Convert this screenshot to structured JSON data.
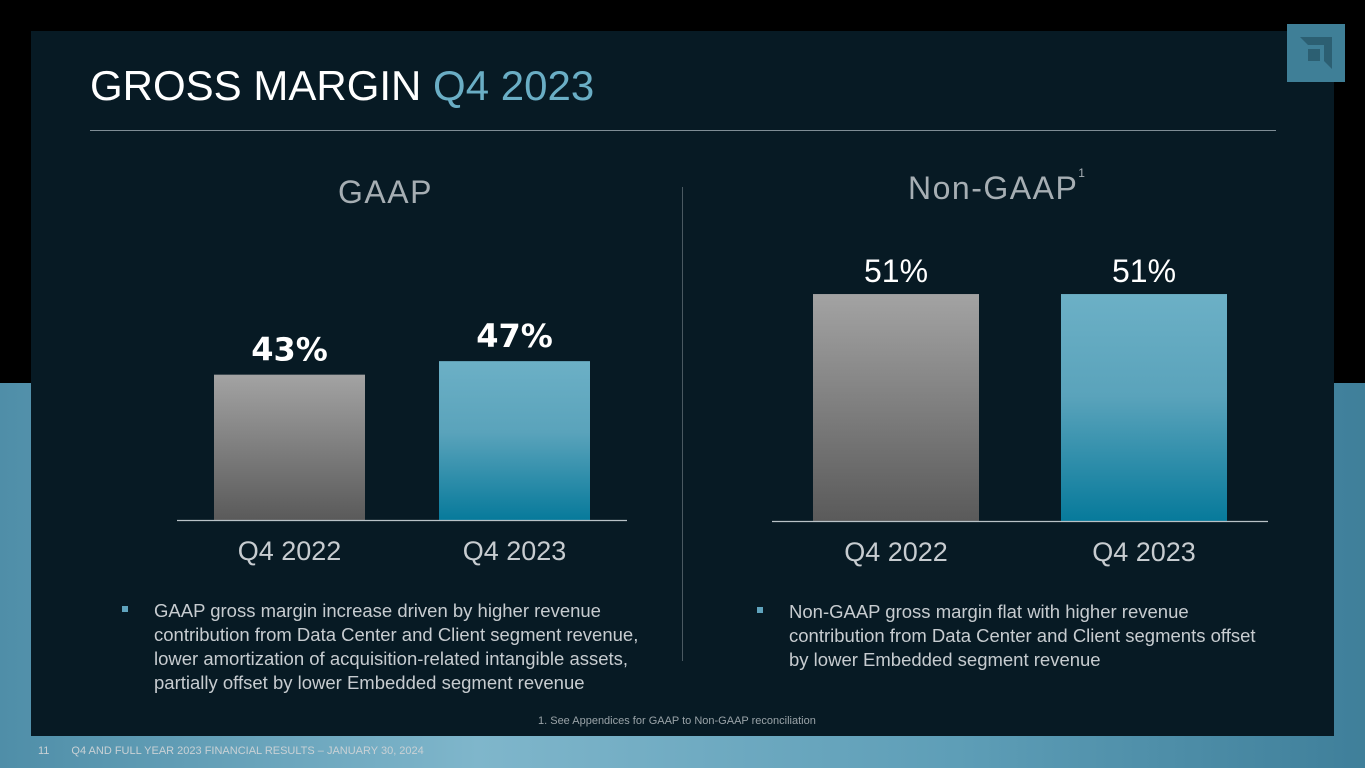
{
  "slide": {
    "title_main": "GROSS MARGIN",
    "title_highlight": "Q4 2023",
    "page_number": "11",
    "footer_text": "Q4 AND FULL YEAR 2023 FINANCIAL RESULTS – JANUARY 30, 2024",
    "footnote": "1. See Appendices for GAAP to Non-GAAP reconciliation",
    "logo_icon": "amd-arrow-logo-icon"
  },
  "colors": {
    "accent": "#6aaec5",
    "bar_grey_top": "#a3a3a3",
    "bar_grey_bottom": "#5a5a5a",
    "bar_blue_top": "#6cb0c6",
    "bar_blue_bottom": "#077a9b"
  },
  "bullets": {
    "gaap": "GAAP gross margin increase driven by higher revenue contribution from Data Center and Client segment revenue, lower amortization of acquisition-related intangible assets, partially offset by lower Embedded segment revenue",
    "non_gaap": "Non-GAAP gross margin flat with higher revenue contribution from Data Center and Client segments offset by lower Embedded segment revenue"
  },
  "chart_data": [
    {
      "type": "bar",
      "title": "GAAP",
      "title_sup": "",
      "categories": [
        "Q4 2022",
        "Q4 2023"
      ],
      "values": [
        43,
        47
      ],
      "labels": [
        "43%",
        "47%"
      ],
      "unit": "%"
    },
    {
      "type": "bar",
      "title": "Non-GAAP",
      "title_sup": "1",
      "categories": [
        "Q4 2022",
        "Q4 2023"
      ],
      "values": [
        51,
        51
      ],
      "labels": [
        "51%",
        "51%"
      ],
      "unit": "%"
    }
  ]
}
